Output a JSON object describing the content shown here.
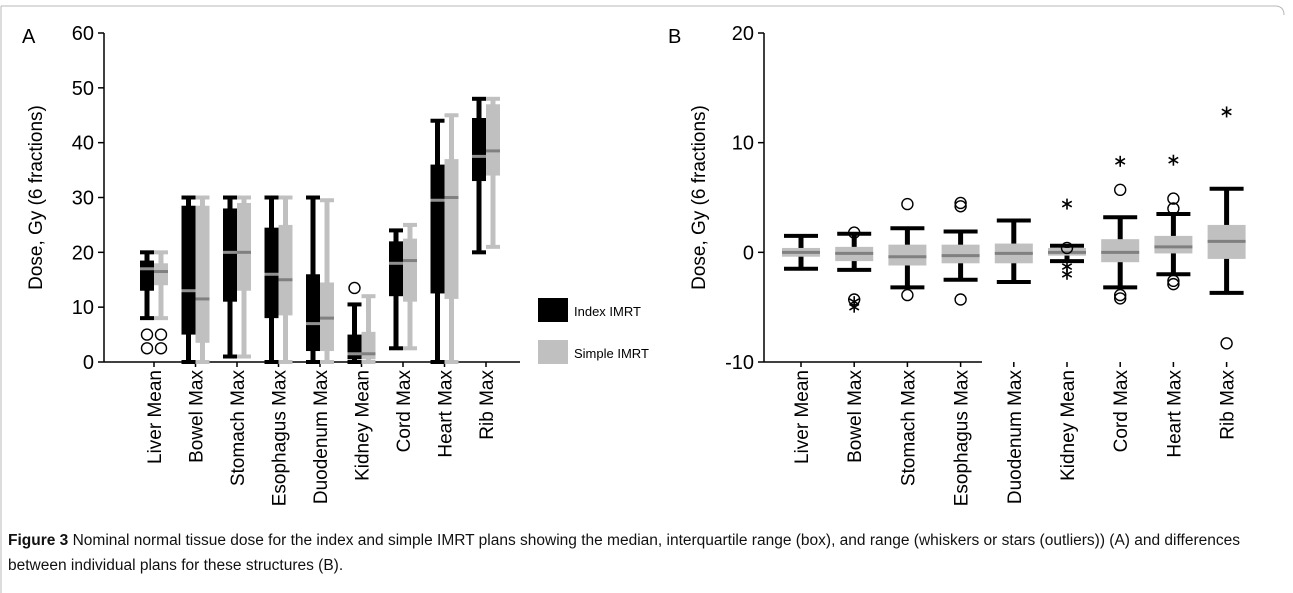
{
  "colors": {
    "index": "#000000",
    "simple": "#c0c0c0",
    "median_index": "#909090",
    "median_simple": "#808080",
    "frame": "#b8b8b8"
  },
  "caption": {
    "label": "Figure 3",
    "text": "Nominal normal tissue dose for the index and simple IMRT plans showing the median, interquartile range (box), and range (whiskers or stars (outliers)) (A) and differences between individual plans for these structures (B)."
  },
  "chart_data": [
    {
      "type": "boxplot",
      "panel_label": "A",
      "ylabel": "Dose, Gy (6 fractions)",
      "ylim": [
        0,
        60
      ],
      "yticks": [
        "0",
        "10",
        "20",
        "30",
        "40",
        "50",
        "60"
      ],
      "categories": [
        "Liver Mean",
        "Bowel Max",
        "Stomach Max",
        "Esophagus Max",
        "Duodenum Max",
        "Kidney Mean",
        "Cord Max",
        "Heart Max",
        "Rib Max"
      ],
      "legend": {
        "position": "right",
        "entries": [
          "Index IMRT",
          "Simple IMRT"
        ]
      },
      "series": [
        {
          "name": "Index IMRT",
          "boxes": [
            {
              "min": 8,
              "q1": 13,
              "median": 17,
              "q3": 18.5,
              "max": 20,
              "outliers_circle": [
                5,
                2.5
              ]
            },
            {
              "min": 0,
              "q1": 5,
              "median": 13,
              "q3": 28.5,
              "max": 30
            },
            {
              "min": 1,
              "q1": 11,
              "median": 20,
              "q3": 28,
              "max": 30
            },
            {
              "min": 0,
              "q1": 8,
              "median": 16,
              "q3": 24.5,
              "max": 30
            },
            {
              "min": 0,
              "q1": 2,
              "median": 7,
              "q3": 16,
              "max": 30
            },
            {
              "min": 0,
              "q1": 0.5,
              "median": 1.5,
              "q3": 5,
              "max": 10.5,
              "outliers_circle": [
                13.5
              ]
            },
            {
              "min": 2.5,
              "q1": 12,
              "median": 18,
              "q3": 22,
              "max": 24
            },
            {
              "min": 0,
              "q1": 12.5,
              "median": 29.5,
              "q3": 36,
              "max": 44
            },
            {
              "min": 20,
              "q1": 33,
              "median": 37.5,
              "q3": 44.5,
              "max": 48
            }
          ]
        },
        {
          "name": "Simple IMRT",
          "boxes": [
            {
              "min": 8,
              "q1": 14,
              "median": 16.5,
              "q3": 18,
              "max": 20,
              "outliers_circle": [
                5,
                2.5
              ]
            },
            {
              "min": 0,
              "q1": 3.5,
              "median": 11.5,
              "q3": 28.5,
              "max": 30
            },
            {
              "min": 1,
              "q1": 13,
              "median": 20,
              "q3": 29,
              "max": 30
            },
            {
              "min": 0,
              "q1": 8.5,
              "median": 15,
              "q3": 25,
              "max": 30
            },
            {
              "min": 0,
              "q1": 2,
              "median": 8,
              "q3": 14.5,
              "max": 29.5
            },
            {
              "min": 0,
              "q1": 0.5,
              "median": 1.5,
              "q3": 5.5,
              "max": 12
            },
            {
              "min": 2.5,
              "q1": 11,
              "median": 18.5,
              "q3": 22.5,
              "max": 25
            },
            {
              "min": 0,
              "q1": 11.5,
              "median": 30,
              "q3": 37,
              "max": 45
            },
            {
              "min": 21,
              "q1": 34,
              "median": 38.5,
              "q3": 47,
              "max": 48
            }
          ]
        }
      ]
    },
    {
      "type": "boxplot",
      "panel_label": "B",
      "ylabel": "Dose, Gy (6 fractions)",
      "ylim": [
        -10,
        20
      ],
      "yticks": [
        "-10",
        "0",
        "10",
        "20"
      ],
      "categories": [
        "Liver Mean",
        "Bowel Max",
        "Stomach Max",
        "Esophagus Max",
        "Duodenum Max",
        "Kidney Mean",
        "Cord Max",
        "Heart Max",
        "Rib Max"
      ],
      "series": [
        {
          "name": "",
          "boxes": [
            {
              "min": -1.5,
              "q1": -0.4,
              "median": 0,
              "q3": 0.4,
              "max": 1.5
            },
            {
              "min": -1.6,
              "q1": -0.8,
              "median": -0.1,
              "q3": 0.5,
              "max": 1.7,
              "outliers_circle": [
                1.8,
                -4.3
              ],
              "outliers_star": [
                -4.5,
                -5
              ]
            },
            {
              "min": -3.2,
              "q1": -1.2,
              "median": -0.4,
              "q3": 0.7,
              "max": 2.2,
              "outliers_circle": [
                4.4,
                -3.9
              ]
            },
            {
              "min": -2.5,
              "q1": -1.0,
              "median": -0.3,
              "q3": 0.7,
              "max": 1.9,
              "outliers_circle": [
                4.5,
                4.2,
                -4.3
              ]
            },
            {
              "min": -2.7,
              "q1": -1.0,
              "median": -0.1,
              "q3": 0.8,
              "max": 2.9
            },
            {
              "min": -0.8,
              "q1": -0.3,
              "median": 0,
              "q3": 0.4,
              "max": 0.6,
              "outliers_circle": [
                0.4
              ],
              "outliers_star": [
                4.4,
                -1.3,
                -2
              ]
            },
            {
              "min": -3.2,
              "q1": -0.9,
              "median": 0,
              "q3": 1.2,
              "max": 3.2,
              "outliers_circle": [
                5.7,
                -3.9,
                -4.2
              ],
              "outliers_star": [
                8.3
              ]
            },
            {
              "min": -2.0,
              "q1": -0.1,
              "median": 0.5,
              "q3": 1.5,
              "max": 3.5,
              "outliers_circle": [
                4.9,
                4.0,
                -2.6,
                -2.9
              ],
              "outliers_star": [
                8.4
              ]
            },
            {
              "min": -3.7,
              "q1": -0.6,
              "median": 1.0,
              "q3": 2.5,
              "max": 5.8,
              "outliers_circle": [
                -8.3
              ],
              "outliers_star": [
                12.8
              ]
            }
          ]
        }
      ]
    }
  ]
}
